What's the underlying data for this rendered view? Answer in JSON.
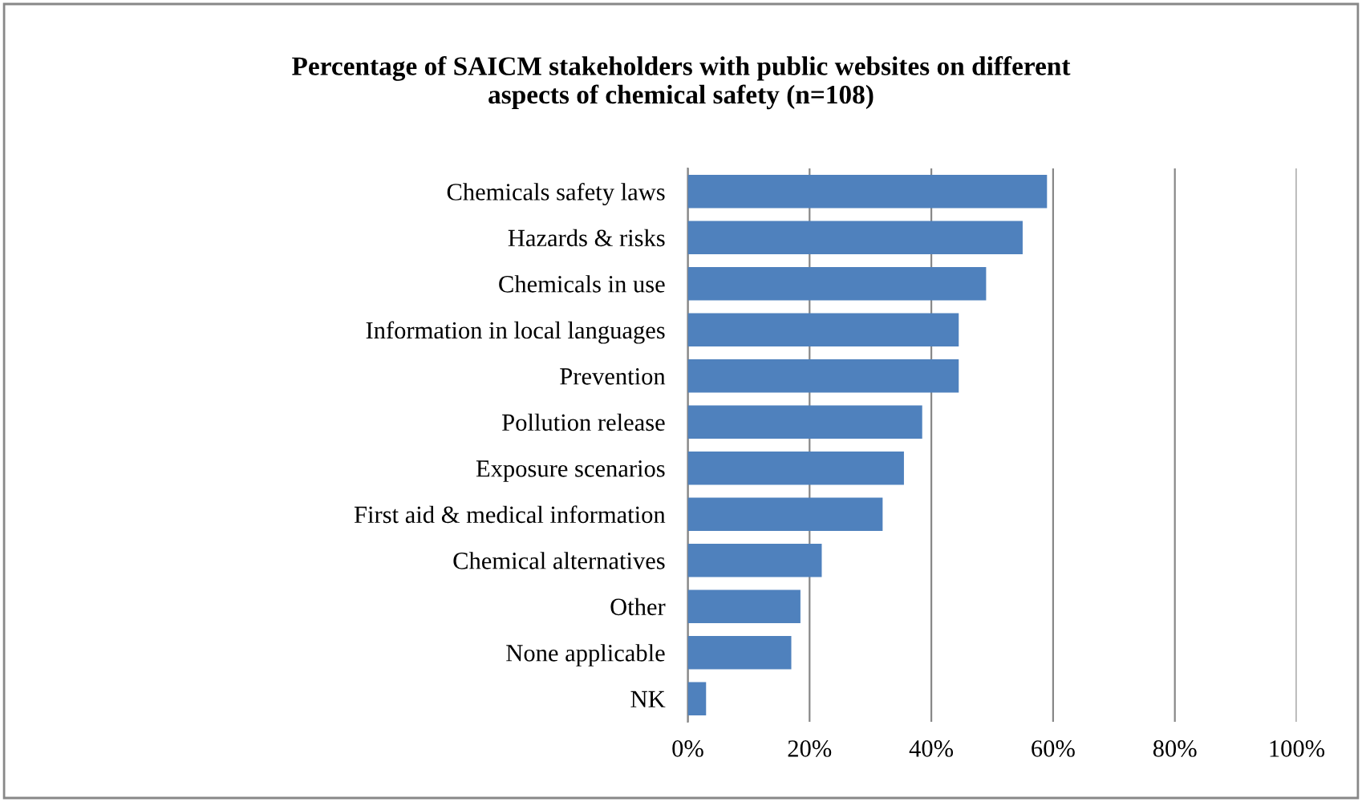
{
  "chart_data": {
    "type": "bar",
    "orientation": "horizontal",
    "title": "Percentage of SAICM stakeholders with public websites on different\naspects of chemical safety (n=108)",
    "categories": [
      "Chemicals safety laws",
      "Hazards & risks",
      "Chemicals in use",
      "Information in local languages",
      "Prevention",
      "Pollution release",
      "Exposure scenarios",
      "First aid & medical information",
      "Chemical alternatives",
      "Other",
      "None applicable",
      "NK"
    ],
    "values": [
      59,
      55,
      49,
      44.5,
      44.5,
      38.5,
      35.5,
      32,
      22,
      18.5,
      17,
      3
    ],
    "color": "#4f81bd",
    "xlim": [
      0,
      100
    ],
    "xticks": [
      {
        "value": 0,
        "label": "0%"
      },
      {
        "value": 20,
        "label": "20%"
      },
      {
        "value": 40,
        "label": "40%"
      },
      {
        "value": 60,
        "label": "60%"
      },
      {
        "value": 80,
        "label": "80%"
      },
      {
        "value": 100,
        "label": "100%"
      }
    ],
    "grid": "x",
    "legend": false
  }
}
